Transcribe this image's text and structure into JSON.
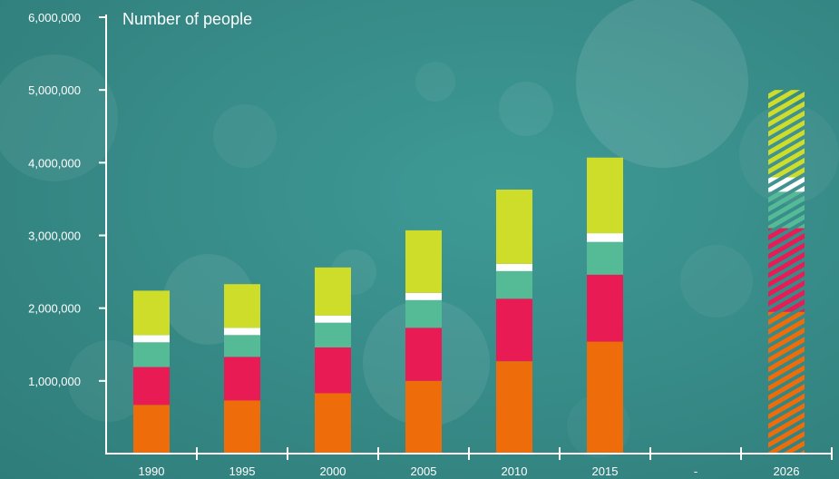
{
  "chart_data": {
    "type": "bar",
    "stacked": true,
    "title": "Number of people",
    "xlabel": "",
    "ylabel": "",
    "ylim": [
      0,
      6000000
    ],
    "yticks": [
      0,
      1000000,
      2000000,
      3000000,
      4000000,
      5000000,
      6000000
    ],
    "ytick_labels": [
      "",
      "1,000,000",
      "2,000,000",
      "3,000,000",
      "4,000,000",
      "5,000,000",
      "6,000,000"
    ],
    "categories": [
      "1990",
      "1995",
      "2000",
      "2005",
      "2010",
      "2015",
      "-",
      "2026"
    ],
    "projected": [
      false,
      false,
      false,
      false,
      false,
      false,
      false,
      true
    ],
    "series": [
      {
        "color": "#ee6c09",
        "values": [
          670000,
          730000,
          830000,
          1000000,
          1270000,
          1540000,
          null,
          1950000
        ]
      },
      {
        "color": "#e81b55",
        "values": [
          520000,
          600000,
          630000,
          730000,
          860000,
          920000,
          null,
          1150000
        ]
      },
      {
        "color": "#55bb97",
        "values": [
          340000,
          300000,
          340000,
          380000,
          380000,
          450000,
          null,
          500000
        ]
      },
      {
        "color": "#ffffff",
        "values": [
          100000,
          100000,
          100000,
          100000,
          100000,
          120000,
          null,
          200000
        ]
      },
      {
        "color": "#cedd29",
        "values": [
          610000,
          600000,
          660000,
          860000,
          1020000,
          1040000,
          null,
          1200000
        ]
      }
    ],
    "grid": false,
    "legend": "none"
  }
}
